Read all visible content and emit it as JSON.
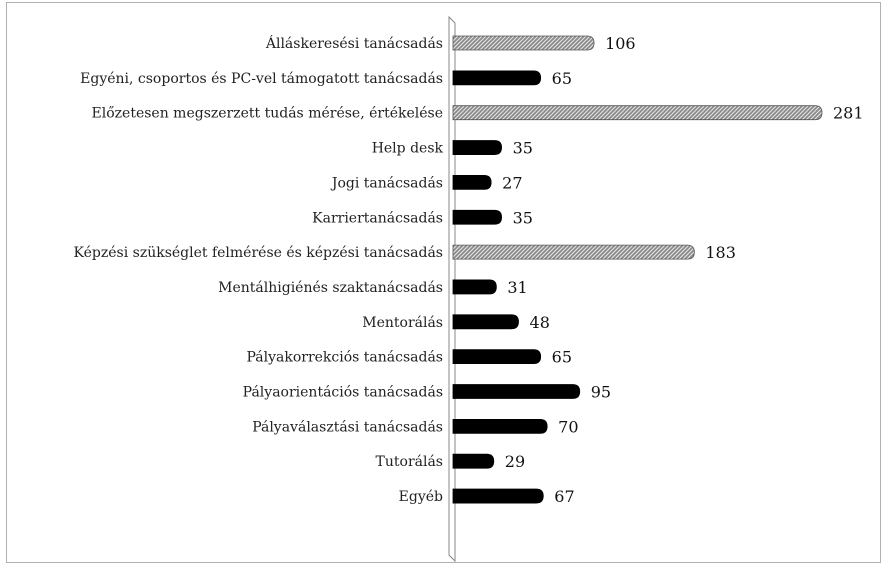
{
  "chart_data": {
    "type": "bar",
    "orientation": "horizontal",
    "categories": [
      "Álláskeresési tanácsadás",
      "Egyéni, csoportos és PC-vel támogatott tanácsadás",
      "Előzetesen megszerzett tudás mérése, értékelése",
      "Help desk",
      "Jogi tanácsadás",
      "Karriertanácsadás",
      "Képzési szükséglet felmérése és képzési tanácsadás",
      "Mentálhigiénés szaktanácsadás",
      "Mentorálás",
      "Pályakorrekciós tanácsadás",
      "Pályaorientációs tanácsadás",
      "Pályaválasztási tanácsadás",
      "Tutorálás",
      "Egyéb"
    ],
    "values": [
      106,
      65,
      281,
      35,
      27,
      35,
      183,
      31,
      48,
      65,
      95,
      70,
      29,
      67
    ],
    "highlighted": [
      true,
      false,
      true,
      false,
      false,
      false,
      true,
      false,
      false,
      false,
      false,
      false,
      false,
      false
    ],
    "data_labels": true,
    "xlim": [
      0,
      281
    ],
    "grid": false,
    "legend": "none",
    "colors": {
      "normal": "#000000",
      "highlight": "#9a9a9a"
    }
  }
}
